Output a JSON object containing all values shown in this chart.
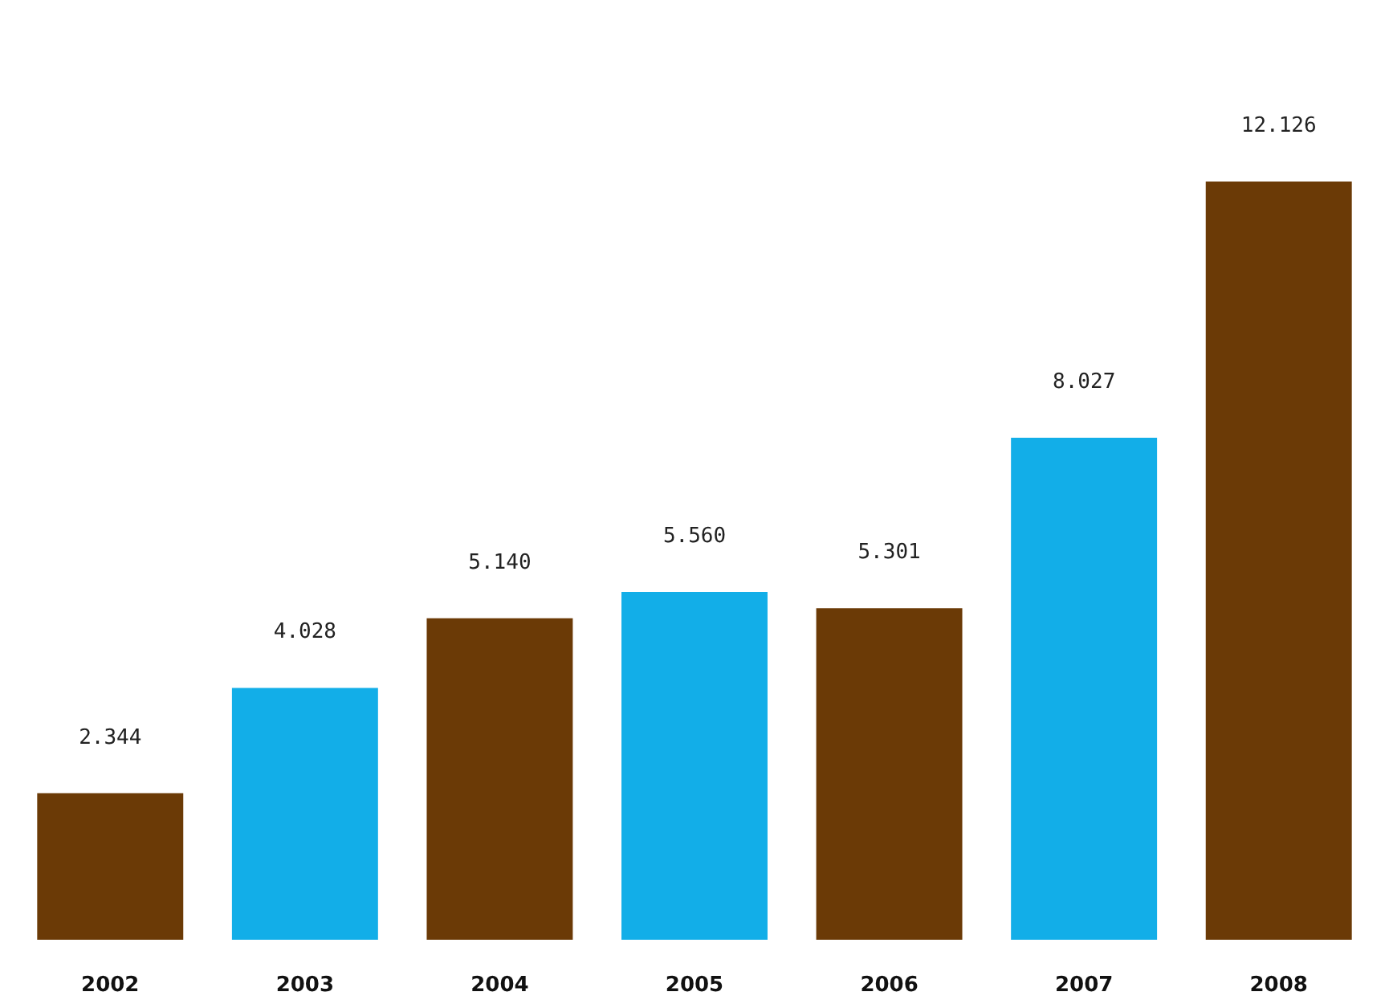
{
  "chart_data": {
    "type": "bar",
    "categories": [
      "2002",
      "2003",
      "2004",
      "2005",
      "2006",
      "2007",
      "2008"
    ],
    "values": [
      2.344,
      4.028,
      5.14,
      5.56,
      5.301,
      8.027,
      12.126
    ],
    "value_labels": [
      "2.344",
      "4.028",
      "5.140",
      "5.560",
      "5.301",
      "8.027",
      "12.126"
    ],
    "colors": [
      "#6b3a06",
      "#12aee8",
      "#6b3a06",
      "#12aee8",
      "#6b3a06",
      "#12aee8",
      "#6b3a06"
    ]
  }
}
